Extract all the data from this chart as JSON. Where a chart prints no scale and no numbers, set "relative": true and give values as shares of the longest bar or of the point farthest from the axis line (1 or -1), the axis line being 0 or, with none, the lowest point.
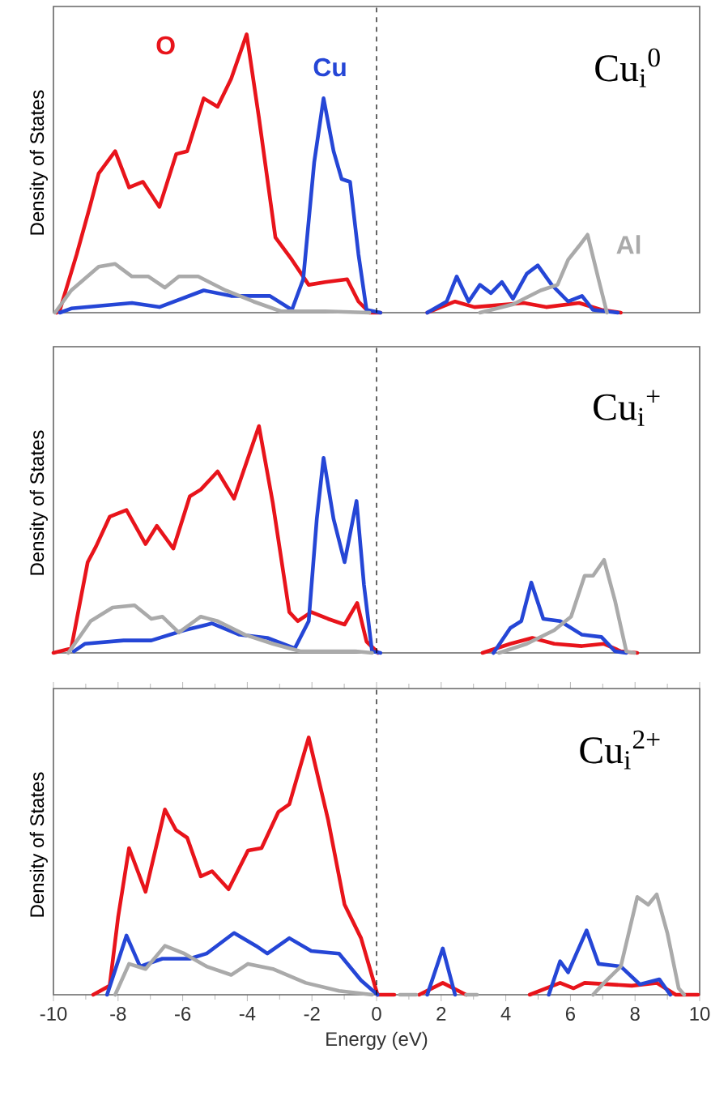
{
  "chart_data": [
    {
      "type": "line",
      "relative": true,
      "xlim": [
        -10,
        10
      ],
      "ylabel": "Density of States",
      "annotations": [
        "Cu$_{i}$$^{0}$"
      ],
      "ref_lines": [
        {
          "axis": "x",
          "value": 0,
          "color": "#000000",
          "line_style": "dashed"
        }
      ],
      "series": [
        {
          "name": "O",
          "color": "#e8141b",
          "x": [
            -9.9,
            -9.8,
            -9.28,
            -8.85,
            -8.6,
            -8.09,
            -7.66,
            -7.23,
            -6.72,
            -6.2,
            -5.86,
            -5.35,
            -4.92,
            -4.5,
            -4.02,
            -3.64,
            -3.13,
            -2.62,
            -2.1,
            -1.59,
            -0.91,
            -0.56,
            -0.22,
            0.12,
            0.8,
            1.57,
            2.43,
            3.03,
            4.56,
            5.25,
            6.27,
            6.96,
            7.56
          ],
          "values": [
            0,
            0.01,
            0.21,
            0.39,
            0.5,
            0.58,
            0.45,
            0.47,
            0.38,
            0.57,
            0.58,
            0.77,
            0.74,
            0.84,
            1.0,
            0.7,
            0.27,
            0.19,
            0.1,
            0.11,
            0.12,
            0.04,
            0,
            0,
            null,
            0,
            0.04,
            0.02,
            0.035,
            0.02,
            0.035,
            0.01,
            0
          ]
        },
        {
          "name": "Cu",
          "color": "#2546d6",
          "x": [
            -9.8,
            -9.45,
            -7.57,
            -6.72,
            -5.35,
            -4.5,
            -3.3,
            -2.62,
            -2.27,
            -1.93,
            -1.64,
            -1.33,
            -1.08,
            -0.82,
            -0.56,
            -0.31,
            0.12,
            0.8,
            1.57,
            2.17,
            2.48,
            2.85,
            3.2,
            3.54,
            3.88,
            4.22,
            4.65,
            4.99,
            5.42,
            5.93,
            6.36,
            6.7,
            7.47
          ],
          "values": [
            0,
            0.015,
            0.035,
            0.02,
            0.08,
            0.06,
            0.06,
            0.01,
            0.12,
            0.54,
            0.77,
            0.58,
            0.48,
            0.47,
            0.21,
            0.01,
            0,
            null,
            0,
            0.04,
            0.13,
            0.04,
            0.1,
            0.07,
            0.11,
            0.05,
            0.14,
            0.17,
            0.1,
            0.04,
            0.06,
            0.01,
            0
          ]
        },
        {
          "name": "Al",
          "color": "#aaaaaa",
          "x": [
            -9.95,
            -9.45,
            -8.6,
            -8.09,
            -7.57,
            -7.06,
            -6.55,
            -6.12,
            -5.52,
            -4.67,
            -3.81,
            -2.96,
            -1.59,
            -0.22,
            1.5,
            3.2,
            4.22,
            5.08,
            5.6,
            5.93,
            6.27,
            6.53,
            6.87,
            7.13
          ],
          "values": [
            0,
            0.08,
            0.165,
            0.175,
            0.13,
            0.13,
            0.09,
            0.13,
            0.13,
            0.08,
            0.04,
            0.005,
            0.005,
            0,
            null,
            0,
            0.03,
            0.08,
            0.1,
            0.19,
            0.24,
            0.28,
            0.12,
            0
          ]
        }
      ]
    },
    {
      "type": "line",
      "relative": true,
      "xlim": [
        -10,
        10
      ],
      "ylabel": "Density of States",
      "annotations": [
        "Cu$_{i}$$^{+}$"
      ],
      "ref_lines": [
        {
          "axis": "x",
          "value": 0,
          "color": "#000000",
          "line_style": "dashed"
        }
      ],
      "series": [
        {
          "color": "#e8141b",
          "x": [
            -10,
            -9.45,
            -8.94,
            -8.68,
            -8.26,
            -7.74,
            -7.15,
            -6.8,
            -6.29,
            -5.78,
            -5.44,
            -4.92,
            -4.41,
            -3.64,
            -3.21,
            -2.7,
            -2.44,
            -2.02,
            -1.5,
            -0.99,
            -0.6,
            -0.31,
            0.05,
            1.5,
            3.28,
            4.14,
            4.82,
            5.5,
            6.36,
            7.04,
            7.56,
            8.07
          ],
          "values": [
            0,
            0.02,
            0.4,
            0.47,
            0.6,
            0.63,
            0.48,
            0.56,
            0.46,
            0.69,
            0.72,
            0.8,
            0.68,
            1.0,
            0.66,
            0.18,
            0.14,
            0.18,
            0.15,
            0.125,
            0.22,
            0.05,
            0,
            null,
            0,
            0.04,
            0.066,
            0.04,
            0.03,
            0.04,
            0.007,
            0
          ]
        },
        {
          "color": "#2546d6",
          "x": [
            -9.37,
            -9.03,
            -7.83,
            -6.97,
            -5.95,
            -5.09,
            -4.24,
            -3.38,
            -2.53,
            -2.1,
            -1.85,
            -1.64,
            -1.33,
            -0.99,
            -0.62,
            -0.39,
            -0.14,
            0.12,
            1.5,
            3.62,
            4.14,
            4.48,
            4.79,
            5.16,
            5.68,
            6.36,
            6.96,
            7.38,
            7.73
          ],
          "values": [
            0.007,
            0.04,
            0.055,
            0.055,
            0.1,
            0.13,
            0.08,
            0.066,
            0.02,
            0.14,
            0.59,
            0.86,
            0.59,
            0.4,
            0.67,
            0.3,
            0.007,
            0,
            null,
            0,
            0.11,
            0.14,
            0.31,
            0.15,
            0.14,
            0.08,
            0.07,
            0.007,
            0
          ]
        },
        {
          "color": "#aaaaaa",
          "x": [
            -9.54,
            -8.85,
            -8.17,
            -7.49,
            -6.97,
            -6.63,
            -6.12,
            -5.44,
            -4.92,
            -4.07,
            -3.21,
            -2.36,
            -0.65,
            -0.14,
            1.5,
            3.79,
            4.65,
            5.5,
            6.02,
            6.44,
            6.7,
            7.04,
            7.38,
            7.73,
            7.98
          ],
          "values": [
            0,
            0.14,
            0.2,
            0.21,
            0.15,
            0.16,
            0.09,
            0.16,
            0.14,
            0.08,
            0.04,
            0.007,
            0.007,
            0,
            null,
            0,
            0.04,
            0.1,
            0.16,
            0.34,
            0.34,
            0.41,
            0.23,
            0.007,
            0
          ]
        }
      ]
    },
    {
      "type": "line",
      "relative": true,
      "xlim": [
        -10,
        10
      ],
      "xticks": [
        -10,
        -8,
        -6,
        -4,
        -2,
        0,
        2,
        4,
        6,
        8,
        10
      ],
      "xlabel": "Energy (eV)",
      "ylabel": "Density of States",
      "annotations": [
        "Cu$_{i}$$^{2+}$"
      ],
      "ref_lines": [
        {
          "axis": "x",
          "value": 0,
          "color": "#000000",
          "line_style": "dashed"
        }
      ],
      "series": [
        {
          "color": "#e8141b",
          "x": [
            -8.77,
            -8.26,
            -8.0,
            -7.66,
            -7.15,
            -6.55,
            -6.21,
            -5.86,
            -5.44,
            -5.09,
            -4.58,
            -3.98,
            -3.56,
            -3.04,
            -2.7,
            -2.1,
            -1.5,
            -0.99,
            -0.48,
            0.03,
            0.55,
            0.9,
            1.32,
            2.05,
            2.77,
            3.5,
            4.74,
            5.68,
            6.1,
            6.44,
            7.9,
            8.67,
            9.26,
            9.95
          ],
          "values": [
            0,
            0.035,
            0.3,
            0.57,
            0.4,
            0.72,
            0.64,
            0.61,
            0.46,
            0.48,
            0.41,
            0.56,
            0.57,
            0.71,
            0.74,
            1.0,
            0.68,
            0.35,
            0.22,
            0,
            0,
            null,
            0,
            0.046,
            0,
            null,
            0,
            0.046,
            0.025,
            0.046,
            0.035,
            0.046,
            0,
            0
          ]
        },
        {
          "color": "#2546d6",
          "x": [
            -8.34,
            -7.74,
            -7.32,
            -6.63,
            -5.78,
            -5.26,
            -4.41,
            -3.73,
            -3.38,
            -2.7,
            -2.02,
            -1.16,
            -0.48,
            0.03,
            0.8,
            1.57,
            2.05,
            2.43,
            3.5,
            5.33,
            5.68,
            5.93,
            6.5,
            6.87,
            7.56,
            8.15,
            8.75,
            9.09
          ],
          "values": [
            0,
            0.23,
            0.11,
            0.14,
            0.14,
            0.16,
            0.24,
            0.19,
            0.16,
            0.22,
            0.17,
            0.16,
            0.056,
            0,
            null,
            0,
            0.18,
            0,
            null,
            0,
            0.13,
            0.087,
            0.25,
            0.12,
            0.11,
            0.04,
            0.06,
            0
          ]
        },
        {
          "color": "#aaaaaa",
          "x": [
            -8.09,
            -7.66,
            -7.15,
            -6.55,
            -5.95,
            -5.26,
            -4.5,
            -3.98,
            -3.21,
            -2.19,
            -1.16,
            -0.14,
            0.3,
            0.72,
            1.23,
            2.0,
            2.77,
            3.11,
            5.0,
            6.7,
            7.04,
            7.56,
            8.07,
            8.41,
            8.67,
            9.0,
            9.35,
            9.52
          ],
          "values": [
            0,
            0.12,
            0.1,
            0.19,
            0.16,
            0.11,
            0.077,
            0.12,
            0.1,
            0.046,
            0.015,
            0,
            null,
            0,
            0,
            null,
            0,
            0,
            null,
            0,
            0.046,
            0.11,
            0.38,
            0.35,
            0.39,
            0.24,
            0.025,
            0
          ]
        }
      ]
    }
  ]
}
